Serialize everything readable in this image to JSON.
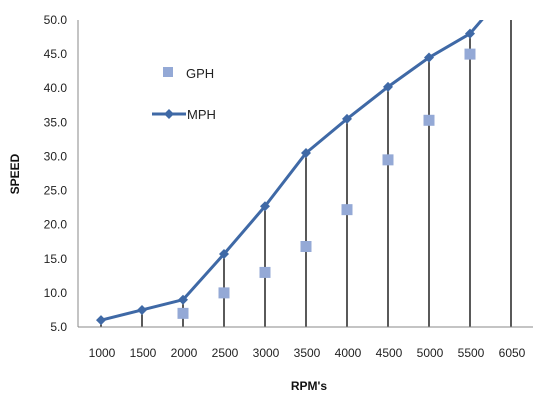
{
  "chart_data": {
    "type": "line",
    "title": "",
    "xlabel": "RPM's",
    "ylabel": "SPEED",
    "categories": [
      "1000",
      "1500",
      "2000",
      "2500",
      "3000",
      "3500",
      "4000",
      "4500",
      "5000",
      "5500",
      "6050"
    ],
    "ylim": [
      5.0,
      50.0
    ],
    "y_ticks": [
      "5.0",
      "10.0",
      "15.0",
      "20.0",
      "25.0",
      "30.0",
      "35.0",
      "40.0",
      "45.0",
      "50.0"
    ],
    "y_step": 5,
    "grid": false,
    "drop_lines": true,
    "legend_position": "top-left",
    "series": [
      {
        "name": "GPH",
        "style": "markers",
        "marker": "square",
        "color": "#94A9D6",
        "values": [
          null,
          null,
          7.0,
          10.0,
          13.0,
          16.8,
          22.2,
          29.5,
          35.3,
          45.0,
          null
        ]
      },
      {
        "name": "MPH",
        "style": "line",
        "marker": "diamond",
        "color": "#3F69A6",
        "values": [
          6.0,
          7.5,
          9.0,
          15.7,
          22.7,
          30.5,
          35.5,
          40.2,
          44.5,
          48.0,
          55.0
        ]
      }
    ]
  }
}
